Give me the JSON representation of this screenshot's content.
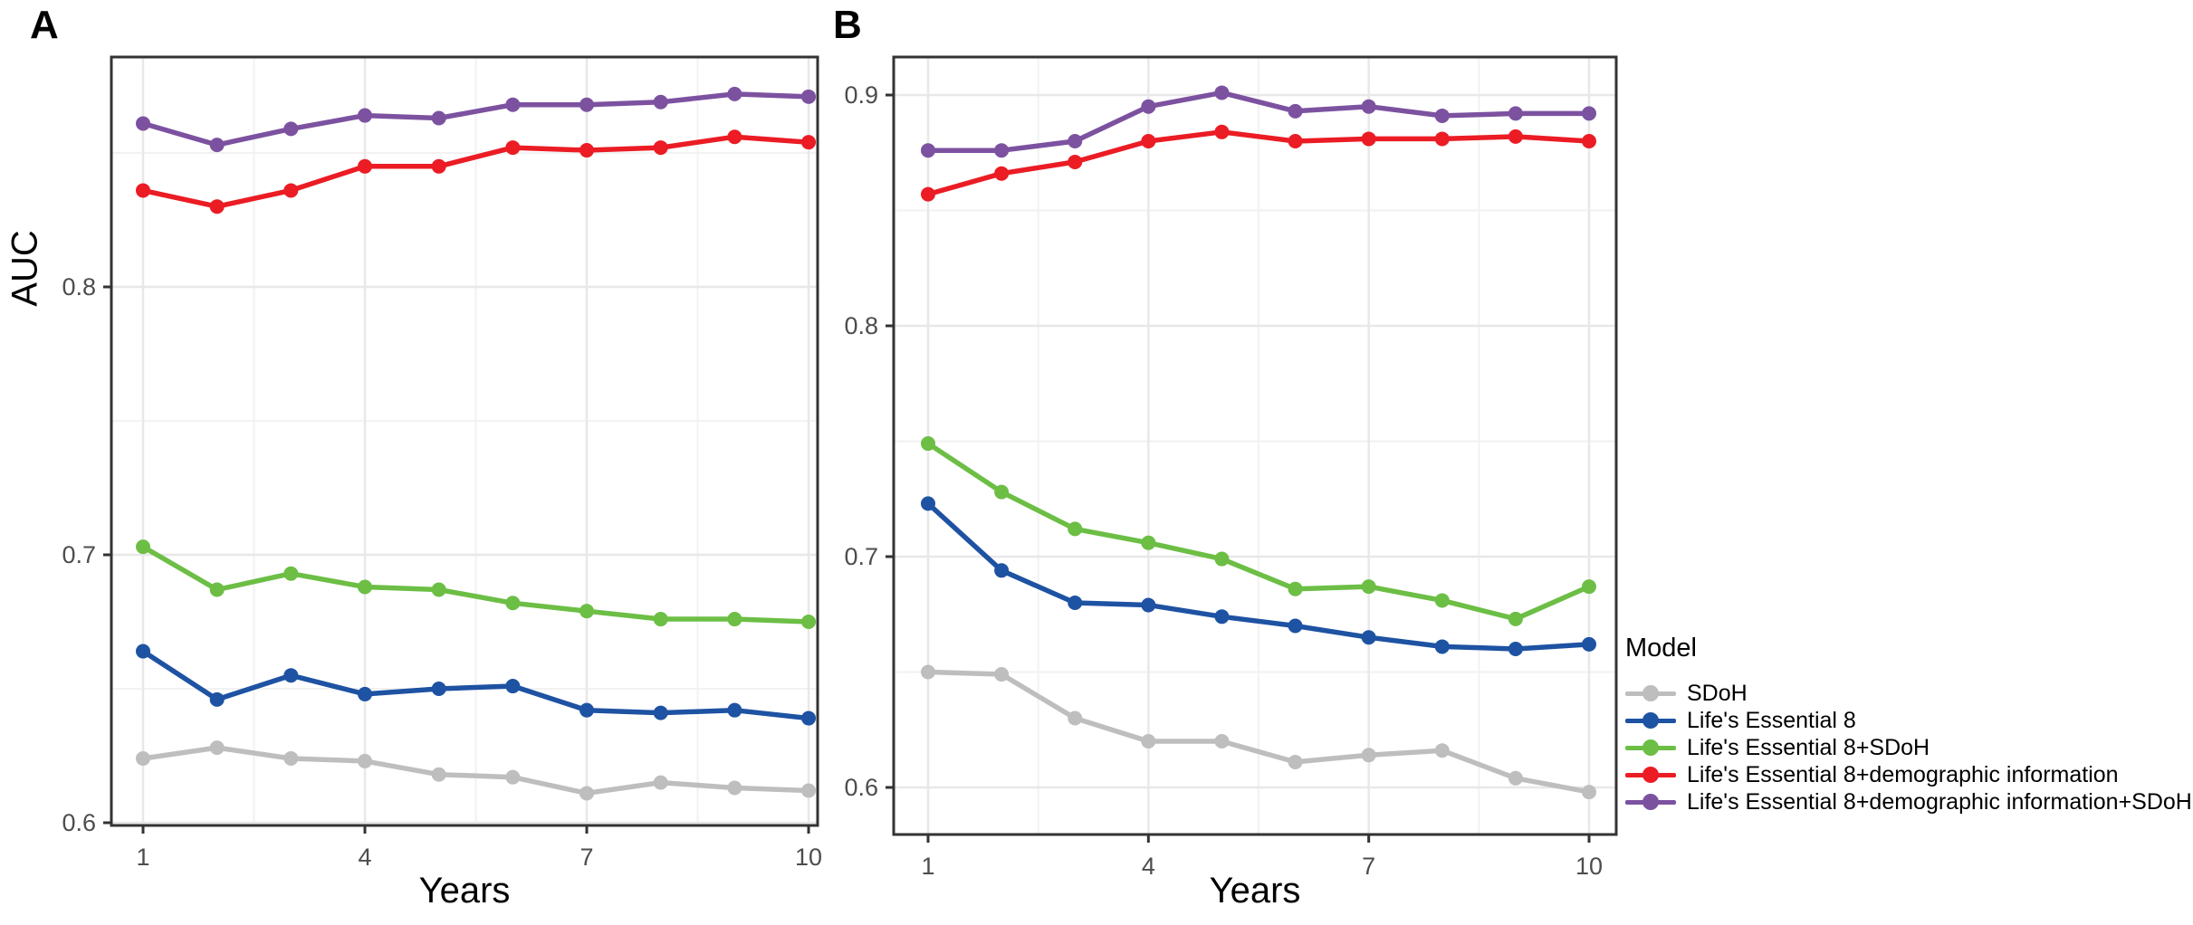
{
  "figure": {
    "panel_a_label": "A",
    "panel_b_label": "B",
    "y_axis_label": "AUC",
    "x_axis_label": "Years"
  },
  "legend": {
    "title": "Model",
    "entries": [
      {
        "label": "SDoH",
        "color": "#BEBEBE"
      },
      {
        "label": "Life's Essential 8",
        "color": "#1E52A2"
      },
      {
        "label": "Life's Essential 8+SDoH",
        "color": "#6CBE45"
      },
      {
        "label": "Life's Essential 8+demographic information",
        "color": "#EB1C24"
      },
      {
        "label": "Life's Essential 8+demographic information+SDoH",
        "color": "#7C52A0"
      }
    ]
  },
  "chart_data": [
    {
      "type": "line",
      "panel": "A",
      "title": "",
      "xlabel": "Years",
      "ylabel": "AUC",
      "x": [
        1,
        2,
        3,
        4,
        5,
        6,
        7,
        8,
        9,
        10
      ],
      "x_ticks": [
        1,
        4,
        7,
        10
      ],
      "y_ticks": [
        0.6,
        0.7,
        0.8
      ],
      "ylim": [
        0.599,
        0.886
      ],
      "xlim": [
        0.57,
        10.43
      ],
      "grid": true,
      "legend_position": "none",
      "series": [
        {
          "name": "SDoH",
          "color": "#BEBEBE",
          "values": [
            0.624,
            0.628,
            0.624,
            0.623,
            0.618,
            0.617,
            0.611,
            0.615,
            0.613,
            0.612
          ]
        },
        {
          "name": "Life's Essential 8",
          "color": "#1E52A2",
          "values": [
            0.664,
            0.646,
            0.655,
            0.648,
            0.65,
            0.651,
            0.642,
            0.641,
            0.642,
            0.639
          ]
        },
        {
          "name": "Life's Essential 8+SDoH",
          "color": "#6CBE45",
          "values": [
            0.703,
            0.687,
            0.693,
            0.688,
            0.687,
            0.682,
            0.679,
            0.676,
            0.676,
            0.675
          ]
        },
        {
          "name": "Life's Essential 8+demographic information",
          "color": "#EB1C24",
          "values": [
            0.836,
            0.83,
            0.836,
            0.845,
            0.845,
            0.852,
            0.851,
            0.852,
            0.856,
            0.854
          ]
        },
        {
          "name": "Life's Essential 8+demographic information+SDoH",
          "color": "#7C52A0",
          "values": [
            0.861,
            0.853,
            0.859,
            0.864,
            0.863,
            0.868,
            0.868,
            0.869,
            0.872,
            0.871
          ]
        }
      ]
    },
    {
      "type": "line",
      "panel": "B",
      "title": "",
      "xlabel": "Years",
      "ylabel": "",
      "x": [
        1,
        2,
        3,
        4,
        5,
        6,
        7,
        8,
        9,
        10
      ],
      "x_ticks": [
        1,
        4,
        7,
        10
      ],
      "y_ticks": [
        0.6,
        0.7,
        0.8,
        0.9
      ],
      "ylim": [
        0.58,
        0.916
      ],
      "xlim": [
        0.53,
        10.47
      ],
      "grid": true,
      "legend_position": "right",
      "series": [
        {
          "name": "SDoH",
          "color": "#BEBEBE",
          "values": [
            0.65,
            0.649,
            0.63,
            0.62,
            0.62,
            0.611,
            0.614,
            0.616,
            0.604,
            0.598
          ]
        },
        {
          "name": "Life's Essential 8",
          "color": "#1E52A2",
          "values": [
            0.723,
            0.694,
            0.68,
            0.679,
            0.674,
            0.67,
            0.665,
            0.661,
            0.66,
            0.662
          ]
        },
        {
          "name": "Life's Essential 8+SDoH",
          "color": "#6CBE45",
          "values": [
            0.749,
            0.728,
            0.712,
            0.706,
            0.699,
            0.686,
            0.687,
            0.681,
            0.673,
            0.687
          ]
        },
        {
          "name": "Life's Essential 8+demographic information",
          "color": "#EB1C24",
          "values": [
            0.857,
            0.866,
            0.871,
            0.88,
            0.884,
            0.88,
            0.881,
            0.881,
            0.882,
            0.88
          ]
        },
        {
          "name": "Life's Essential 8+demographic information+SDoH",
          "color": "#7C52A0",
          "values": [
            0.876,
            0.876,
            0.88,
            0.895,
            0.901,
            0.893,
            0.895,
            0.891,
            0.892,
            0.892
          ]
        }
      ]
    }
  ]
}
